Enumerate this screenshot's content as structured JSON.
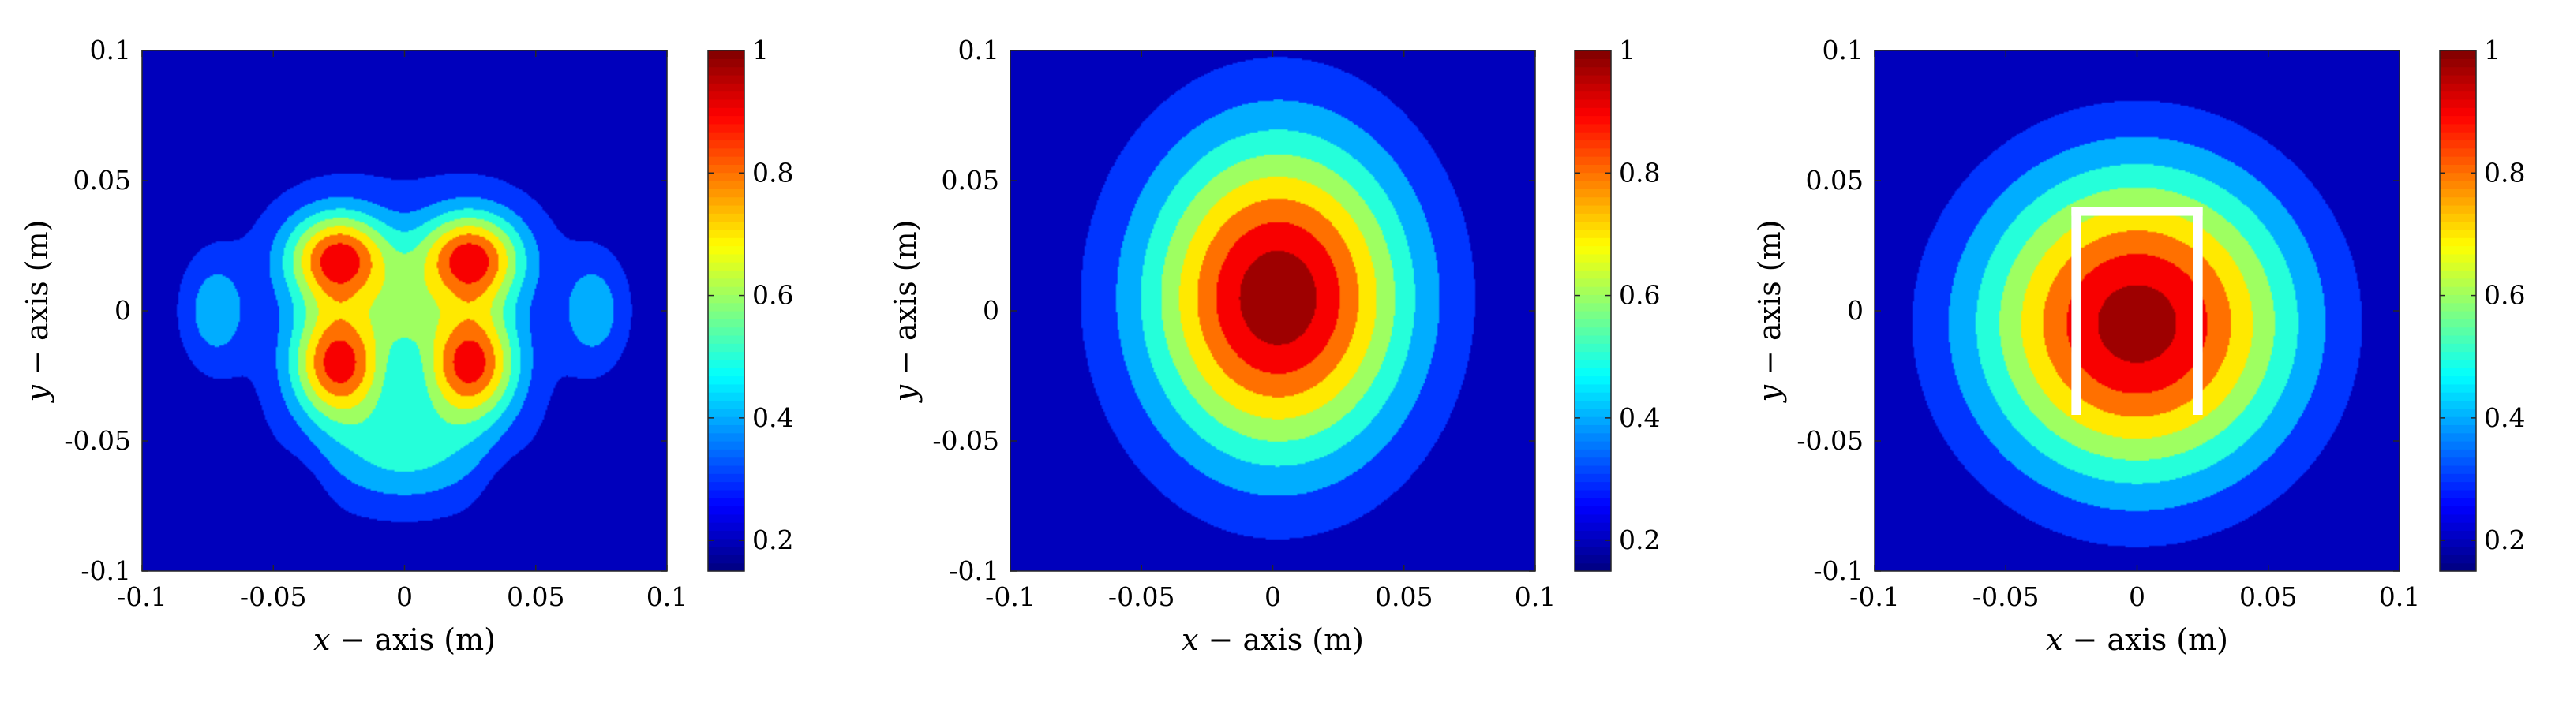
{
  "chart_data": [
    {
      "type": "heatmap",
      "panel": "left",
      "xlabel_var": "x",
      "xlabel_rest": " − axis (m)",
      "ylabel_var": "y",
      "ylabel_rest": " − axis (m)",
      "xlim": [
        -0.1,
        0.1
      ],
      "ylim": [
        -0.1,
        0.1
      ],
      "xticks": [
        -0.1,
        -0.05,
        0,
        0.05,
        0.1
      ],
      "xtick_labels": [
        "-0.1",
        "-0.05",
        "0",
        "0.05",
        "0.1"
      ],
      "yticks": [
        -0.1,
        -0.05,
        0,
        0.05,
        0.1
      ],
      "ytick_labels": [
        "-0.1",
        "-0.05",
        "0",
        "0.05",
        "0.1"
      ],
      "colorbar": {
        "range": [
          0.15,
          1
        ],
        "ticks": [
          0.2,
          0.4,
          0.6,
          0.8,
          1
        ],
        "tick_labels": [
          "0.2",
          "0.4",
          "0.6",
          "0.8",
          "1"
        ],
        "colormap": "jet"
      },
      "grid": false,
      "levels": [
        0.15,
        0.25,
        0.35,
        0.45,
        0.55,
        0.65,
        0.75,
        0.85,
        0.95,
        1.0
      ],
      "field_model": "multi-lobe pattern with four peaks (~0.9) at (±0.025, ±0.02), saddle (~0.45) at center, side lobes (~0.45) at (±0.072, 0)"
    },
    {
      "type": "heatmap",
      "panel": "middle",
      "xlabel_var": "x",
      "xlabel_rest": " − axis (m)",
      "ylabel_var": "y",
      "ylabel_rest": " − axis (m)",
      "xlim": [
        -0.1,
        0.1
      ],
      "ylim": [
        -0.1,
        0.1
      ],
      "xticks": [
        -0.1,
        -0.05,
        0,
        0.05,
        0.1
      ],
      "xtick_labels": [
        "-0.1",
        "-0.05",
        "0",
        "0.05",
        "0.1"
      ],
      "yticks": [
        -0.1,
        -0.05,
        0,
        0.05,
        0.1
      ],
      "ytick_labels": [
        "-0.1",
        "-0.05",
        "0",
        "0.05",
        "0.1"
      ],
      "colorbar": {
        "range": [
          0.15,
          1
        ],
        "ticks": [
          0.2,
          0.4,
          0.6,
          0.8,
          1
        ],
        "tick_labels": [
          "0.2",
          "0.4",
          "0.6",
          "0.8",
          "1"
        ],
        "colormap": "jet"
      },
      "grid": false,
      "levels": [
        0.15,
        0.25,
        0.35,
        0.45,
        0.55,
        0.65,
        0.75,
        0.85,
        0.95,
        1.0
      ],
      "field_model": "single elongated peak (~1) at (0, 0.005), elliptical contours, wider vertically"
    },
    {
      "type": "heatmap",
      "panel": "right",
      "xlabel_var": "x",
      "xlabel_rest": " − axis (m)",
      "ylabel_var": "y",
      "ylabel_rest": " − axis (m)",
      "xlim": [
        -0.1,
        0.1
      ],
      "ylim": [
        -0.1,
        0.1
      ],
      "xticks": [
        -0.1,
        -0.05,
        0,
        0.05,
        0.1
      ],
      "xtick_labels": [
        "-0.1",
        "-0.05",
        "0",
        "0.05",
        "0.1"
      ],
      "yticks": [
        -0.1,
        -0.05,
        0,
        0.05,
        0.1
      ],
      "ytick_labels": [
        "-0.1",
        "-0.05",
        "0",
        "0.05",
        "0.1"
      ],
      "colorbar": {
        "range": [
          0.15,
          1
        ],
        "ticks": [
          0.2,
          0.4,
          0.6,
          0.8,
          1
        ],
        "tick_labels": [
          "0.2",
          "0.4",
          "0.6",
          "0.8",
          "1"
        ],
        "colormap": "jet"
      },
      "grid": false,
      "levels": [
        0.15,
        0.25,
        0.35,
        0.45,
        0.55,
        0.65,
        0.75,
        0.85,
        0.95,
        1.0
      ],
      "field_model": "single circular peak (~1) at (0, -0.005), concentric contours",
      "overlay": {
        "shape": "inverted-U outline",
        "color": "#ffffff",
        "x_range": [
          -0.025,
          0.025
        ],
        "y_range": [
          -0.04,
          0.04
        ],
        "thickness": 0.0035
      }
    }
  ]
}
